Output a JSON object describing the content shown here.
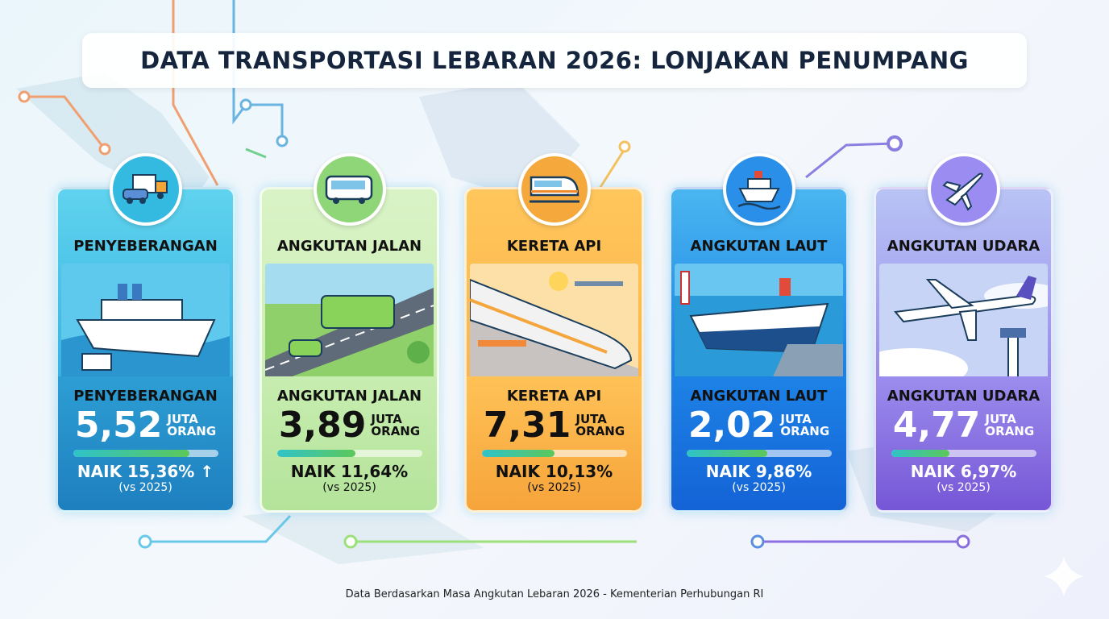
{
  "title": "DATA TRANSPORTASI LEBARAN 2026: LONJAKAN PENUMPANG",
  "cards": [
    {
      "title": "PENYEBERANGAN",
      "name": "PENYEBERANGAN",
      "value": "5,52",
      "unit1": "JUTA",
      "unit2": "ORANG",
      "growth": "NAIK 15,36%",
      "arrow": "↑",
      "compare": "(vs 2025)",
      "bar_fill": 0.8,
      "icon": "truck-car-icon",
      "color": "#2fa6d6"
    },
    {
      "title": "ANGKUTAN JALAN",
      "name": "ANGKUTAN JALAN",
      "value": "3,89",
      "unit1": "JUTA",
      "unit2": "ORANG",
      "growth": "NAIK 11,64%",
      "compare": "(vs 2025)",
      "bar_fill": 0.54,
      "icon": "bus-icon",
      "color": "#9edb84"
    },
    {
      "title": "KERETA API",
      "name": "KERETA API",
      "value": "7,31",
      "unit1": "JUTA",
      "unit2": "ORANG",
      "growth": "NAIK 10,13%",
      "compare": "(vs 2025)",
      "bar_fill": 0.5,
      "icon": "train-icon",
      "color": "#f9b54a"
    },
    {
      "title": "ANGKUTAN LAUT",
      "name": "ANGKUTAN LAUT",
      "value": "2,02",
      "unit1": "JUTA",
      "unit2": "ORANG",
      "growth": "NAIK 9,86%",
      "compare": "(vs 2025)",
      "bar_fill": 0.56,
      "icon": "ship-icon",
      "color": "#1a76e0"
    },
    {
      "title": "ANGKUTAN UDARA",
      "name": "ANGKUTAN UDARA",
      "value": "4,77",
      "unit1": "JUTA",
      "unit2": "ORANG",
      "growth": "NAIK 6,97%",
      "compare": "(vs 2025)",
      "bar_fill": 0.4,
      "icon": "airplane-icon",
      "color": "#8a6fe0"
    }
  ],
  "footer": "Data Berdasarkan Masa Angkutan Lebaran 2026 - Kementerian Perhubungan RI"
}
